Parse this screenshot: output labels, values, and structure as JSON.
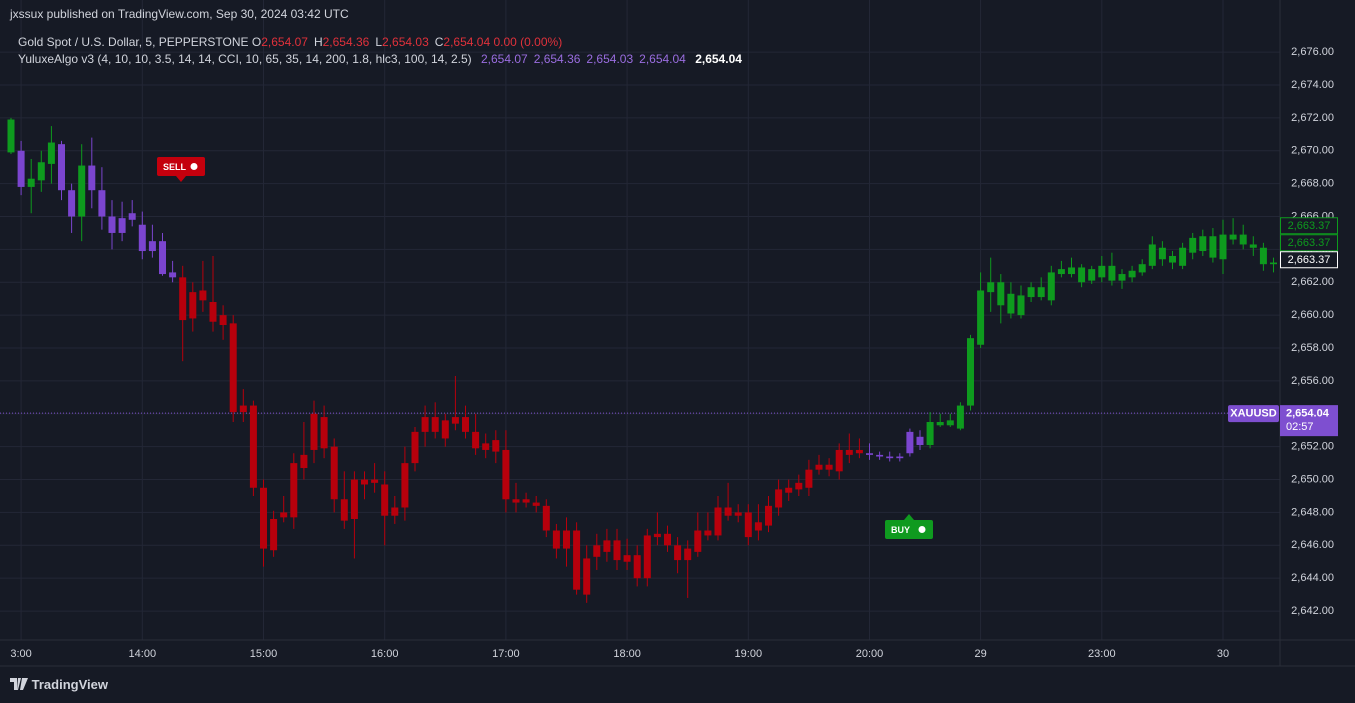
{
  "header": {
    "publisher": "jxssux published on TradingView.com, Sep 30, 2024 03:42 UTC",
    "symbol": "Gold Spot / U.S. Dollar, 5, PEPPERSTONE",
    "ohlc": [
      {
        "key": "O",
        "value": "2,654.07"
      },
      {
        "key": "H",
        "value": "2,654.36"
      },
      {
        "key": "L",
        "value": "2,654.03"
      },
      {
        "key": "C",
        "value": "2,654.04"
      }
    ],
    "change": "0.00 (0.00%)",
    "indicator": "YuluxeAlgo v3 (4, 10, 10, 3.5, 14, 14, CCI, 10, 65, 35, 14, 200, 1.8, hlc3, 100, 14, 2.5)",
    "indicator_values": [
      "2,654.07",
      "2,654.36",
      "2,654.03",
      "2,654.04"
    ],
    "indicator_last": "2,654.04"
  },
  "footer": {
    "brand": "TradingView"
  },
  "chart_data": {
    "type": "candlestick",
    "categories": [
      null,
      "3:00",
      null,
      null,
      null,
      null,
      null,
      null,
      null,
      null,
      null,
      null,
      null,
      "14:00",
      null,
      null,
      null,
      null,
      null,
      null,
      null,
      null,
      null,
      null,
      null,
      "15:00",
      null,
      null,
      null,
      null,
      null,
      null,
      null,
      null,
      null,
      null,
      null,
      "16:00",
      null,
      null,
      null,
      null,
      null,
      null,
      null,
      null,
      null,
      null,
      null,
      "17:00",
      null,
      null,
      null,
      null,
      null,
      null,
      null,
      null,
      null,
      null,
      null,
      "18:00",
      null,
      null,
      null,
      null,
      null,
      null,
      null,
      null,
      null,
      null,
      null,
      "19:00",
      null,
      null,
      null,
      null,
      null,
      null,
      null,
      null,
      null,
      null,
      null,
      "20:00",
      null,
      null,
      null,
      null,
      null,
      null,
      null,
      null,
      null,
      null,
      "29",
      null,
      null,
      null,
      null,
      null,
      null,
      null,
      null,
      null,
      null,
      null,
      "23:00",
      null,
      null,
      null,
      null,
      null,
      null,
      null,
      null,
      null,
      null,
      null,
      "30",
      null,
      null,
      null,
      null,
      null
    ],
    "open": [
      2669.9,
      2670.0,
      2667.8,
      2668.2,
      2669.2,
      2670.4,
      2667.6,
      2666.0,
      2669.1,
      2667.6,
      2666.0,
      2665.9,
      2665.8,
      2665.5,
      2664.5,
      2664.5,
      2662.6,
      2662.3,
      2661.4,
      2661.5,
      2660.8,
      2660.0,
      2659.5,
      2654.5,
      2654.5,
      2649.5,
      2647.6,
      2648.0,
      2651.0,
      2651.5,
      2654.0,
      2653.8,
      2652.0,
      2648.8,
      2650.0,
      2650.0,
      2650.0,
      2649.7,
      2648.3,
      2651.0,
      2652.9,
      2653.8,
      2653.8,
      2653.6,
      2653.8,
      2653.8,
      2652.9,
      2652.2,
      2652.4,
      2651.8,
      2648.8,
      2648.8,
      2648.6,
      2648.4,
      2646.9,
      2646.9,
      2646.9,
      2645.2,
      2646.0,
      2646.3,
      2646.3,
      2645.4,
      2645.4,
      2646.6,
      2646.7,
      2646.7,
      2646.0,
      2645.8,
      2646.9,
      2646.9,
      2648.3,
      2648.3,
      2648.0,
      2648.0,
      2647.4,
      2648.4,
      2649.4,
      2649.5,
      2649.8,
      2650.6,
      2650.9,
      2650.9,
      2651.8,
      2651.8,
      2651.8,
      2651.6,
      2651.5,
      2651.4,
      2651.4,
      2651.6,
      2652.1,
      2652.1,
      2653.3,
      2653.3,
      2653.1,
      2654.5,
      2658.2,
      2661.4,
      2660.6,
      2660.1,
      2660.0,
      2661.1,
      2661.1,
      2660.9,
      2662.5,
      2662.5,
      2662.0,
      2662.1,
      2662.3,
      2662.1,
      2662.1,
      2662.3,
      2662.6,
      2663.0,
      2663.4,
      2663.2,
      2663.0,
      2663.8,
      2663.9,
      2663.5,
      2664.9,
      2664.6,
      2664.9,
      2664.3,
      2664.1,
      2663.1
    ],
    "high": [
      2672.0,
      2670.6,
      2669.5,
      2670.0,
      2671.5,
      2670.6,
      2668.0,
      2670.4,
      2670.8,
      2669.0,
      2667.0,
      2666.9,
      2667.0,
      2666.3,
      2665.5,
      2665.0,
      2663.3,
      2663.0,
      2662.0,
      2663.3,
      2663.6,
      2660.6,
      2660.0,
      2655.5,
      2654.8,
      2650.0,
      2648.1,
      2649.0,
      2651.6,
      2653.5,
      2654.8,
      2654.5,
      2652.5,
      2650.5,
      2650.5,
      2650.5,
      2651.0,
      2650.5,
      2649.0,
      2652.0,
      2653.2,
      2654.5,
      2654.7,
      2654.0,
      2656.3,
      2654.5,
      2654.0,
      2652.8,
      2653.0,
      2653.0,
      2649.8,
      2649.2,
      2649.0,
      2648.8,
      2647.3,
      2647.7,
      2647.4,
      2646.0,
      2646.7,
      2647.0,
      2647.0,
      2646.4,
      2646.0,
      2647.0,
      2648.0,
      2647.2,
      2646.5,
      2646.3,
      2648.0,
      2648.0,
      2649.0,
      2649.8,
      2648.5,
      2648.5,
      2648.5,
      2649.0,
      2650.0,
      2650.0,
      2650.3,
      2651.2,
      2651.5,
      2651.3,
      2652.2,
      2652.8,
      2652.5,
      2652.2,
      2651.7,
      2651.7,
      2651.6,
      2653.1,
      2653.0,
      2654.1,
      2654.0,
      2654.0,
      2654.7,
      2658.8,
      2662.6,
      2663.5,
      2662.5,
      2662.0,
      2661.8,
      2662.0,
      2662.3,
      2663.0,
      2663.3,
      2663.5,
      2663.1,
      2663.0,
      2663.6,
      2663.8,
      2662.8,
      2663.0,
      2663.4,
      2664.8,
      2664.5,
      2663.9,
      2664.4,
      2665.0,
      2665.2,
      2665.3,
      2665.8,
      2665.9,
      2665.5,
      2664.8,
      2664.4,
      2663.5
    ],
    "low": [
      2669.8,
      2667.3,
      2666.2,
      2667.5,
      2668.0,
      2667.0,
      2665.0,
      2664.5,
      2666.5,
      2665.2,
      2664.0,
      2664.5,
      2665.4,
      2663.4,
      2663.5,
      2662.4,
      2662.0,
      2657.2,
      2659.0,
      2660.2,
      2659.0,
      2658.5,
      2653.5,
      2653.5,
      2649.0,
      2644.7,
      2645.3,
      2647.4,
      2647.0,
      2650.0,
      2651.0,
      2651.3,
      2648.0,
      2647.0,
      2645.2,
      2648.8,
      2649.2,
      2646.0,
      2647.3,
      2647.5,
      2650.5,
      2652.0,
      2652.5,
      2652.0,
      2653.0,
      2652.5,
      2651.5,
      2651.3,
      2651.0,
      2648.0,
      2648.0,
      2648.3,
      2648.0,
      2646.5,
      2645.2,
      2644.7,
      2643.0,
      2642.5,
      2644.5,
      2645.0,
      2644.5,
      2644.5,
      2643.5,
      2643.5,
      2646.0,
      2645.6,
      2644.3,
      2642.8,
      2645.3,
      2646.3,
      2646.3,
      2647.5,
      2647.4,
      2646.0,
      2646.3,
      2646.8,
      2647.8,
      2648.7,
      2649.0,
      2649.0,
      2650.3,
      2650.2,
      2650.0,
      2651.0,
      2651.3,
      2651.2,
      2651.2,
      2651.1,
      2651.1,
      2651.4,
      2651.8,
      2651.9,
      2653.2,
      2653.2,
      2653.0,
      2654.2,
      2658.0,
      2660.2,
      2659.5,
      2659.8,
      2659.8,
      2660.8,
      2660.9,
      2660.6,
      2662.3,
      2662.3,
      2661.7,
      2661.9,
      2662.0,
      2661.8,
      2661.6,
      2662.0,
      2662.4,
      2662.8,
      2663.0,
      2662.8,
      2662.8,
      2663.4,
      2663.6,
      2663.2,
      2662.5,
      2664.3,
      2664.0,
      2663.6,
      2662.7,
      2662.6
    ],
    "close": [
      2671.9,
      2667.8,
      2668.3,
      2669.3,
      2670.5,
      2667.6,
      2666.0,
      2669.1,
      2667.6,
      2666.0,
      2665.0,
      2665.0,
      2666.2,
      2663.9,
      2663.9,
      2662.5,
      2662.3,
      2659.7,
      2659.8,
      2660.9,
      2659.6,
      2659.4,
      2654.1,
      2654.1,
      2649.5,
      2645.8,
      2645.7,
      2647.7,
      2647.7,
      2650.7,
      2651.8,
      2651.9,
      2648.8,
      2647.5,
      2647.6,
      2649.7,
      2649.8,
      2647.8,
      2647.8,
      2648.3,
      2651.0,
      2652.9,
      2652.9,
      2652.5,
      2653.4,
      2652.9,
      2651.9,
      2651.8,
      2651.7,
      2648.8,
      2648.6,
      2648.6,
      2648.4,
      2646.9,
      2645.8,
      2645.8,
      2643.3,
      2643.0,
      2645.3,
      2645.6,
      2645.1,
      2645.0,
      2644.0,
      2644.0,
      2646.5,
      2646.0,
      2645.1,
      2645.1,
      2645.6,
      2646.6,
      2646.6,
      2647.8,
      2647.8,
      2646.5,
      2646.9,
      2647.2,
      2648.3,
      2649.2,
      2649.4,
      2649.5,
      2650.6,
      2650.6,
      2650.5,
      2651.5,
      2651.6,
      2651.5,
      2651.4,
      2651.3,
      2651.3,
      2652.9,
      2652.6,
      2653.5,
      2653.5,
      2653.6,
      2654.5,
      2658.6,
      2661.5,
      2662.0,
      2662.0,
      2661.3,
      2661.2,
      2661.7,
      2661.7,
      2662.6,
      2662.8,
      2662.9,
      2662.9,
      2662.8,
      2663.0,
      2663.0,
      2662.5,
      2662.7,
      2663.1,
      2664.3,
      2664.1,
      2663.6,
      2664.1,
      2664.7,
      2664.8,
      2664.8,
      2663.4,
      2664.9,
      2664.3,
      2664.1,
      2663.1,
      2663.2
    ],
    "colors": [
      "#0e9b1e",
      "#7b45cf",
      "#0e9b1e",
      "#0e9b1e",
      "#0e9b1e",
      "#7b45cf",
      "#7b45cf",
      "#0e9b1e",
      "#7b45cf",
      "#7b45cf",
      "#7b45cf",
      "#7b45cf",
      "#7b45cf",
      "#7b45cf",
      "#7b45cf",
      "#7b45cf",
      "#7b45cf",
      "#b8000c",
      "#b8000c",
      "#b8000c",
      "#b8000c",
      "#b8000c",
      "#b8000c",
      "#b8000c",
      "#b8000c",
      "#b8000c",
      "#b8000c",
      "#b8000c",
      "#b8000c",
      "#b8000c",
      "#b8000c",
      "#b8000c",
      "#b8000c",
      "#b8000c",
      "#b8000c",
      "#b8000c",
      "#b8000c",
      "#b8000c",
      "#b8000c",
      "#b8000c",
      "#b8000c",
      "#b8000c",
      "#b8000c",
      "#b8000c",
      "#b8000c",
      "#b8000c",
      "#b8000c",
      "#b8000c",
      "#b8000c",
      "#b8000c",
      "#b8000c",
      "#b8000c",
      "#b8000c",
      "#b8000c",
      "#b8000c",
      "#b8000c",
      "#b8000c",
      "#b8000c",
      "#b8000c",
      "#b8000c",
      "#b8000c",
      "#b8000c",
      "#b8000c",
      "#b8000c",
      "#b8000c",
      "#b8000c",
      "#b8000c",
      "#b8000c",
      "#b8000c",
      "#b8000c",
      "#b8000c",
      "#b8000c",
      "#b8000c",
      "#b8000c",
      "#b8000c",
      "#b8000c",
      "#b8000c",
      "#b8000c",
      "#b8000c",
      "#b8000c",
      "#b8000c",
      "#b8000c",
      "#b8000c",
      "#b8000c",
      "#b8000c",
      "#7b45cf",
      "#7b45cf",
      "#7b45cf",
      "#7b45cf",
      "#7b45cf",
      "#7b45cf",
      "#0e9b1e",
      "#0e9b1e",
      "#0e9b1e",
      "#0e9b1e",
      "#0e9b1e",
      "#0e9b1e",
      "#0e9b1e",
      "#0e9b1e",
      "#0e9b1e",
      "#0e9b1e",
      "#0e9b1e",
      "#0e9b1e",
      "#0e9b1e",
      "#0e9b1e",
      "#0e9b1e",
      "#0e9b1e",
      "#0e9b1e",
      "#0e9b1e",
      "#0e9b1e",
      "#0e9b1e",
      "#0e9b1e",
      "#0e9b1e",
      "#0e9b1e",
      "#0e9b1e",
      "#0e9b1e",
      "#0e9b1e",
      "#0e9b1e",
      "#0e9b1e",
      "#0e9b1e",
      "#0e9b1e",
      "#0e9b1e",
      "#0e9b1e",
      "#0e9b1e",
      "#0e9b1e",
      "#0e9b1e"
    ],
    "ylim": [
      2640.24,
      2679.17
    ],
    "yticks": [
      {
        "value": 2642,
        "label": "2,642.00"
      },
      {
        "value": 2644,
        "label": "2,644.00"
      },
      {
        "value": 2646,
        "label": "2,646.00"
      },
      {
        "value": 2648,
        "label": "2,648.00"
      },
      {
        "value": 2650,
        "label": "2,650.00"
      },
      {
        "value": 2652,
        "label": "2,652.00"
      },
      {
        "value": 2654,
        "label": "2,654.00"
      },
      {
        "value": 2656,
        "label": "2,656.00"
      },
      {
        "value": 2658,
        "label": "2,658.00"
      },
      {
        "value": 2660,
        "label": "2,660.00"
      },
      {
        "value": 2662,
        "label": "2,662.00"
      },
      {
        "value": 2664,
        "label": "2,664.00"
      },
      {
        "value": 2666,
        "label": "2,666.00"
      },
      {
        "value": 2668,
        "label": "2,668.00"
      },
      {
        "value": 2670,
        "label": "2,670.00"
      },
      {
        "value": 2672,
        "label": "2,672.00"
      },
      {
        "value": 2674,
        "label": "2,674.00"
      },
      {
        "value": 2676,
        "label": "2,676.00"
      }
    ],
    "grid": true,
    "price_labels": [
      {
        "value": 2663.37,
        "label": "2,663.37",
        "color": "#0e9b1e"
      },
      {
        "value": 2663.37,
        "label": "2,663.37",
        "color": "#0e9b1e"
      },
      {
        "value": 2663.37,
        "label": "2,663.37",
        "color": "#ffffff"
      }
    ],
    "last_price": {
      "symbol": "XAUUSD",
      "value": 2654.04,
      "label": "2,654.04",
      "countdown": "02:57",
      "color": "#7e4fd0"
    },
    "signals": [
      {
        "label": "SELL",
        "color": "#c4000d"
      },
      {
        "label": "BUY",
        "color": "#0f9a1f"
      }
    ]
  }
}
